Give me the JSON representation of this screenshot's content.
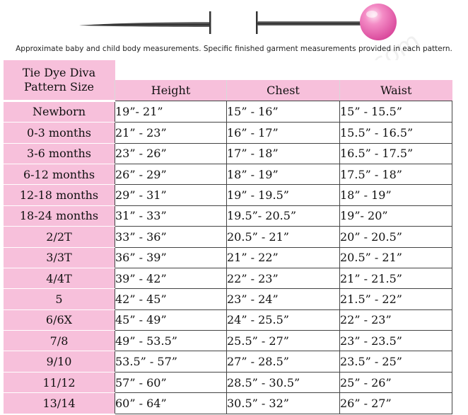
{
  "caption": "Approximate baby and child body measurements. Specific finished garment measurements provided in each pattern.",
  "watermark": "www.tiedyedivapatterns.com",
  "table": {
    "corner_line1": "Tie Dye Diva",
    "corner_line2": "Pattern Size",
    "headers": [
      "Height",
      "Chest",
      "Waist"
    ],
    "rows": [
      {
        "size": "Newborn",
        "height": "19”- 21”",
        "chest": "15” - 16”",
        "waist": "15” - 15.5”"
      },
      {
        "size": "0-3 months",
        "height": "21” - 23”",
        "chest": "16” - 17”",
        "waist": "15.5” - 16.5”"
      },
      {
        "size": "3-6 months",
        "height": "23” - 26”",
        "chest": "17” - 18”",
        "waist": "16.5” - 17.5”"
      },
      {
        "size": "6-12 months",
        "height": "26” - 29”",
        "chest": "18” - 19”",
        "waist": "17.5” - 18”"
      },
      {
        "size": "12-18 months",
        "height": "29” - 31”",
        "chest": "19” - 19.5”",
        "waist": "18” - 19”"
      },
      {
        "size": "18-24 months",
        "height": "31” - 33”",
        "chest": "19.5”- 20.5”",
        "waist": "19”- 20”"
      },
      {
        "size": "2/2T",
        "height": "33” - 36”",
        "chest": "20.5” - 21”",
        "waist": "20” - 20.5”"
      },
      {
        "size": "3/3T",
        "height": "36” - 39”",
        "chest": "21” - 22”",
        "waist": "20.5” - 21”"
      },
      {
        "size": "4/4T",
        "height": "39” - 42”",
        "chest": "22” - 23”",
        "waist": "21” - 21.5”"
      },
      {
        "size": "5",
        "height": "42” - 45”",
        "chest": "23” - 24”",
        "waist": "21.5” - 22”"
      },
      {
        "size": "6/6X",
        "height": "45” - 49”",
        "chest": "24” - 25.5”",
        "waist": "22” - 23”"
      },
      {
        "size": "7/8",
        "height": "49” - 53.5”",
        "chest": "25.5” - 27”",
        "waist": "23” - 23.5”"
      },
      {
        "size": "9/10",
        "height": "53.5” - 57”",
        "chest": "27” - 28.5”",
        "waist": "23.5” - 25”"
      },
      {
        "size": "11/12",
        "height": "57” - 60”",
        "chest": "28.5” - 30.5”",
        "waist": "25” - 26”"
      },
      {
        "size": "13/14",
        "height": "60” - 64”",
        "chest": "30.5” - 32”",
        "waist": "26” - 27”"
      }
    ]
  },
  "colors": {
    "accent_pink": "#f7c0db",
    "pin_head": "#ee66b4",
    "needle": "#555555"
  },
  "icons": [
    "needle-icon",
    "pin-icon"
  ]
}
